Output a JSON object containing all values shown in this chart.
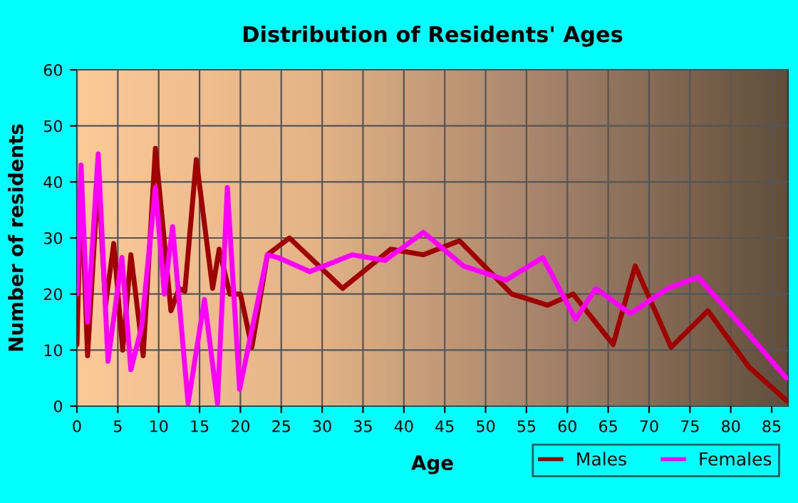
{
  "chart_data": {
    "type": "line",
    "title": "Distribution of Residents' Ages",
    "xlabel": "Age",
    "ylabel": "Number of residents",
    "xlim": [
      0,
      87
    ],
    "xticks": [
      0,
      5,
      10,
      15,
      20,
      25,
      30,
      35,
      40,
      45,
      50,
      55,
      60,
      65,
      70,
      75,
      80,
      85
    ],
    "ylim": [
      0,
      60
    ],
    "yticks": [
      0,
      10,
      20,
      30,
      40,
      50,
      60
    ],
    "grid": true,
    "legend": "bottom right",
    "marker": "none",
    "line_style": "solid",
    "series": [
      {
        "name": "Males",
        "color": "#a00000",
        "x": [
          0,
          0.5,
          1.3,
          2.6,
          3.5,
          4.5,
          5.6,
          6.6,
          8.1,
          9.6,
          11.5,
          12.5,
          13.2,
          14.6,
          16.6,
          17.4,
          18.7,
          20,
          21.4,
          23.3,
          26,
          32.5,
          38.4,
          42.4,
          46.8,
          53.2,
          57.6,
          60.7,
          65.6,
          68.3,
          72.7,
          77.2,
          82.2,
          86.8
        ],
        "values": [
          11,
          40,
          9,
          41,
          18,
          29,
          10,
          27,
          9,
          46,
          17,
          21,
          20.5,
          44,
          21,
          28,
          20,
          20,
          10.5,
          27,
          30,
          21,
          28,
          27,
          29.5,
          20,
          18,
          20,
          11,
          25,
          10.5,
          17,
          7,
          1
        ]
      },
      {
        "name": "Females",
        "color": "#ff00ff",
        "x": [
          0,
          0.5,
          1.3,
          2.6,
          3.8,
          5.5,
          6.6,
          7.9,
          9.6,
          10.7,
          11.7,
          13.6,
          15.6,
          17.2,
          18.4,
          19.9,
          23.3,
          24.6,
          28.5,
          33.7,
          37.7,
          42.4,
          47.3,
          52.5,
          57,
          61,
          63.5,
          67.7,
          72.3,
          76,
          81.5,
          86.8
        ],
        "values": [
          20,
          43,
          15,
          45,
          8,
          26.5,
          6.5,
          14,
          39,
          20,
          32,
          0.5,
          19,
          0.5,
          39,
          3,
          27,
          26.5,
          24,
          27,
          26,
          31,
          25,
          22.5,
          26.5,
          15.5,
          21,
          16.5,
          21,
          23,
          14,
          5
        ]
      }
    ]
  }
}
